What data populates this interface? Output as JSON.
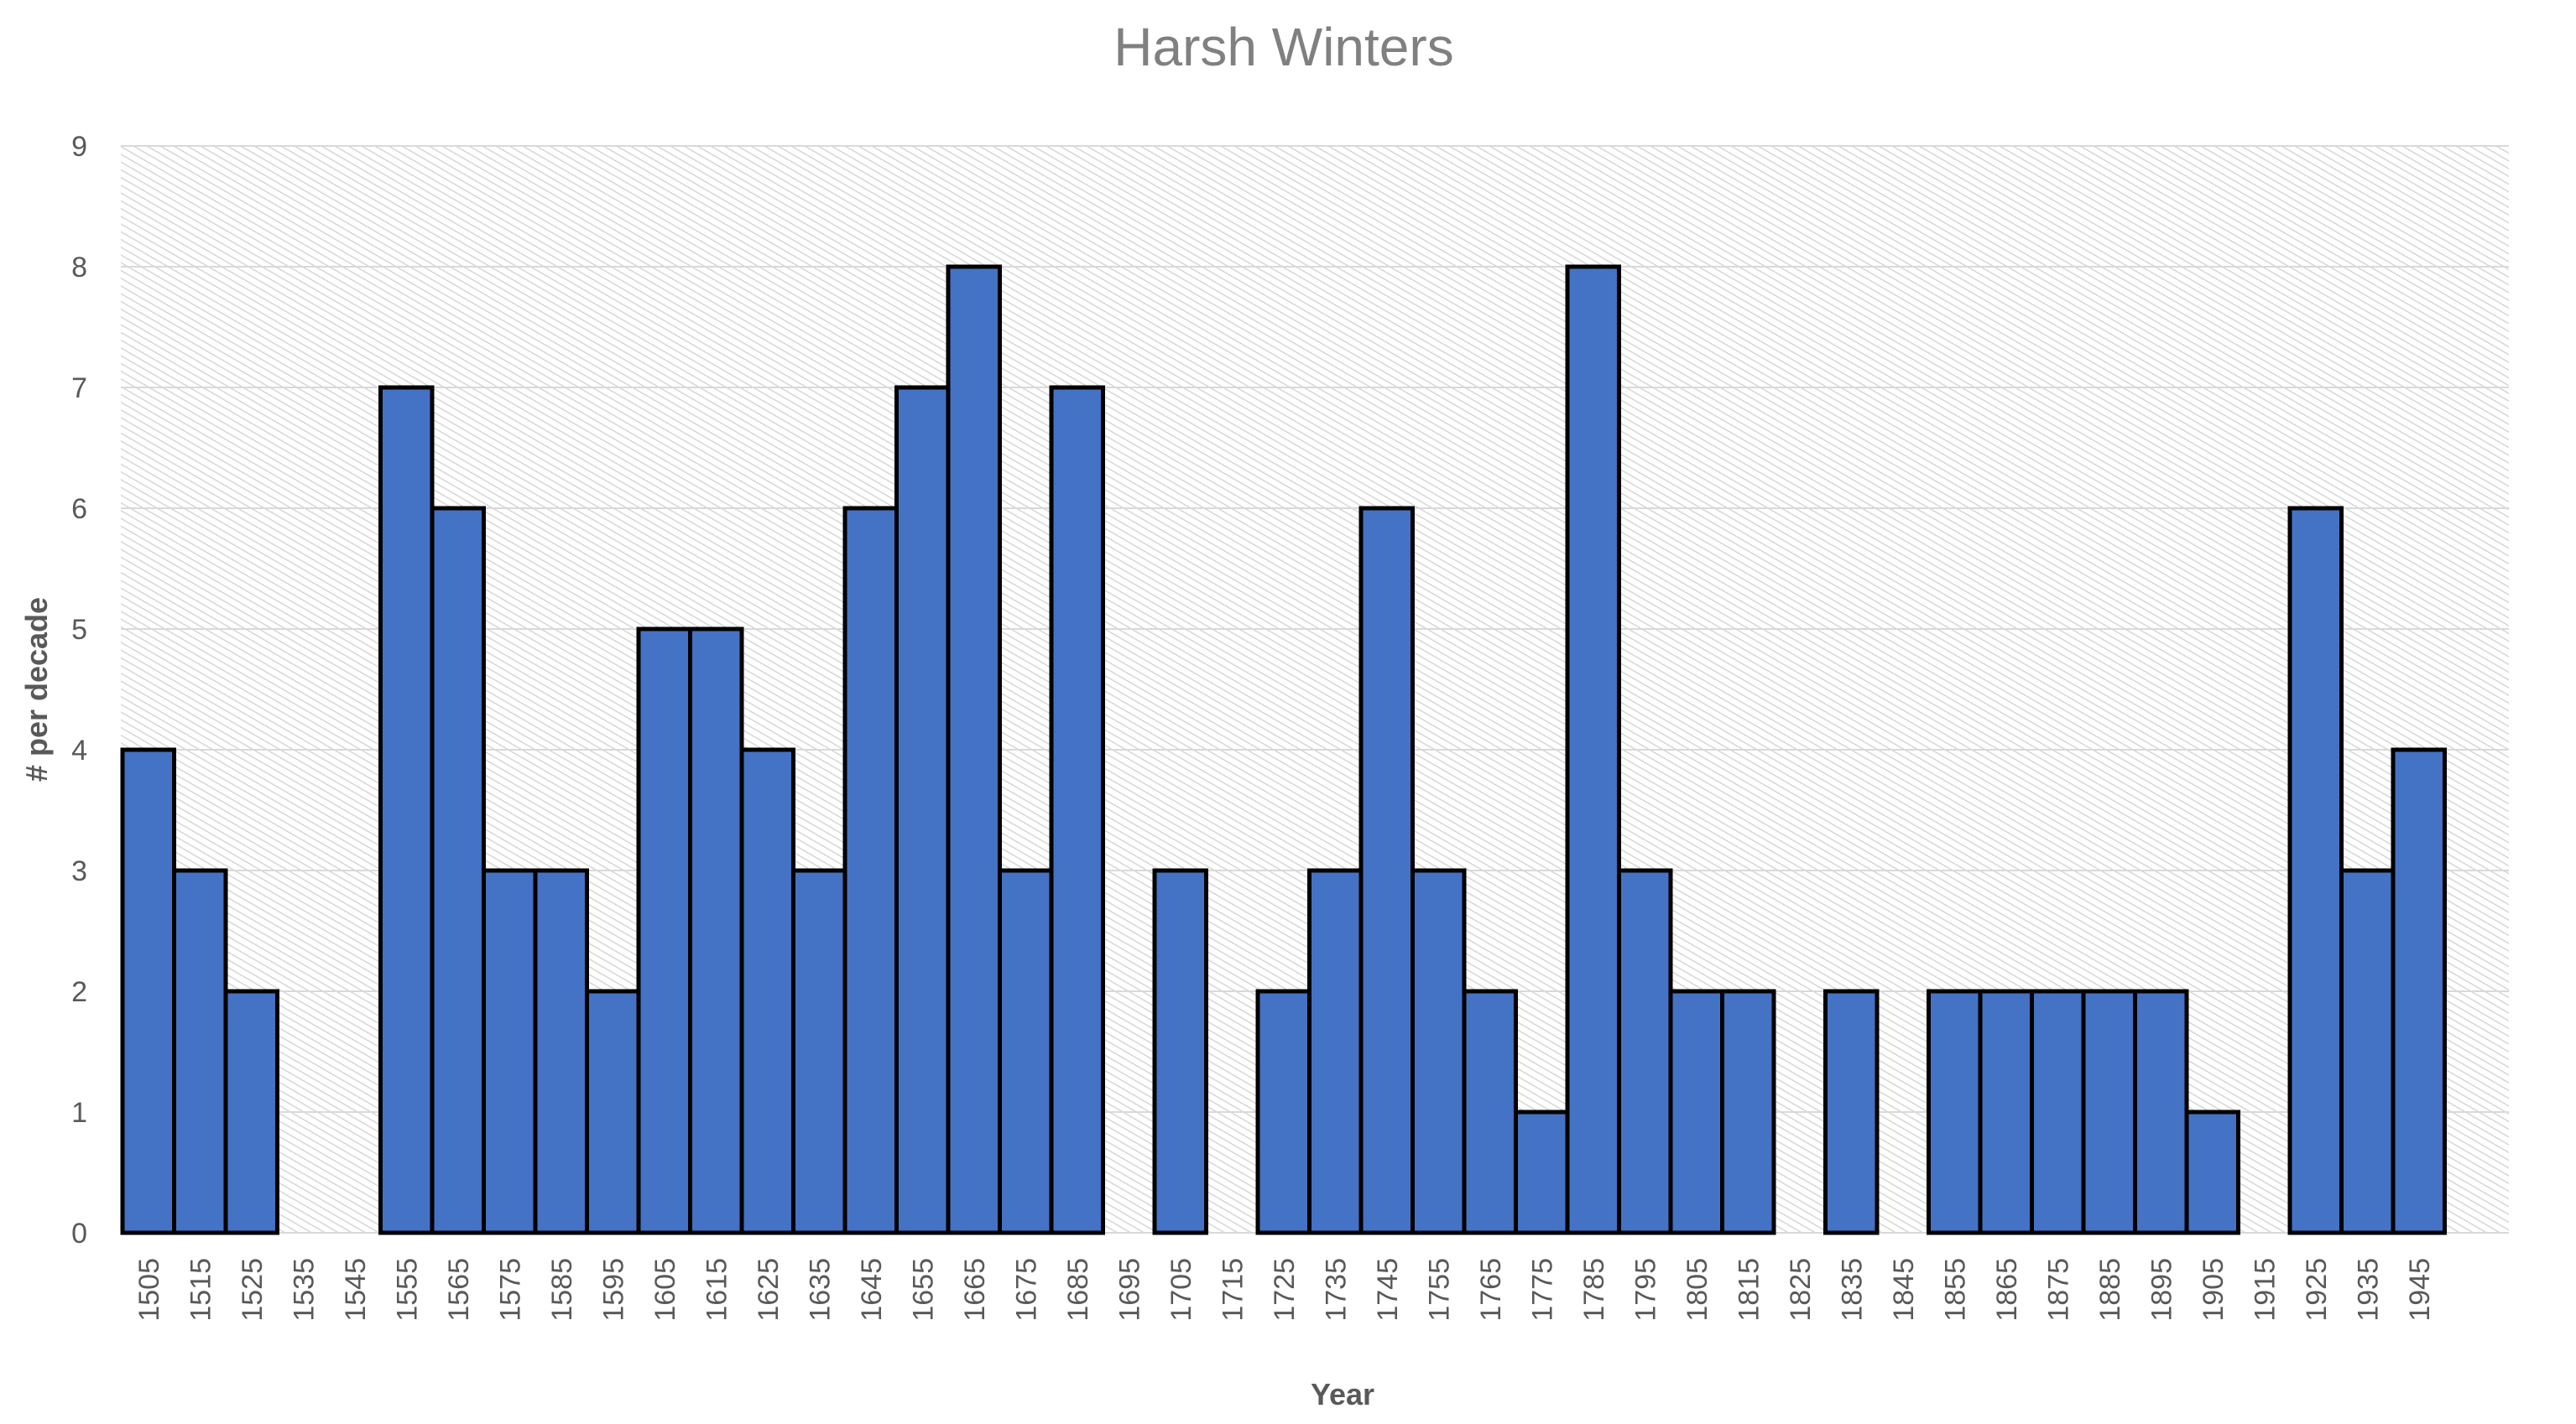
{
  "chart_data": {
    "type": "bar",
    "title": "Harsh Winters",
    "xlabel": "Year",
    "ylabel": "# per decade",
    "ylim": [
      0,
      9
    ],
    "yticks": [
      0,
      1,
      2,
      3,
      4,
      5,
      6,
      7,
      8,
      9
    ],
    "grid": true,
    "legend": "none",
    "colors": {
      "bar_fill": "#4472c4",
      "bar_stroke": "#000000",
      "grid": "#d9d9d9",
      "text": "#595959",
      "title": "#808080"
    },
    "categories": [
      "1505",
      "1515",
      "1525",
      "1535",
      "1545",
      "1555",
      "1565",
      "1575",
      "1585",
      "1595",
      "1605",
      "1615",
      "1625",
      "1635",
      "1645",
      "1655",
      "1665",
      "1675",
      "1685",
      "1695",
      "1705",
      "1715",
      "1725",
      "1735",
      "1745",
      "1755",
      "1765",
      "1775",
      "1785",
      "1795",
      "1805",
      "1815",
      "1825",
      "1835",
      "1845",
      "1855",
      "1865",
      "1875",
      "1885",
      "1895",
      "1905",
      "1915",
      "1925",
      "1935",
      "1945"
    ],
    "values": [
      4,
      3,
      2,
      0,
      0,
      7,
      6,
      3,
      3,
      2,
      5,
      5,
      4,
      3,
      6,
      7,
      8,
      3,
      7,
      0,
      3,
      0,
      2,
      3,
      6,
      3,
      2,
      1,
      8,
      3,
      2,
      2,
      0,
      2,
      0,
      2,
      2,
      2,
      2,
      2,
      1,
      0,
      6,
      3,
      4
    ]
  }
}
